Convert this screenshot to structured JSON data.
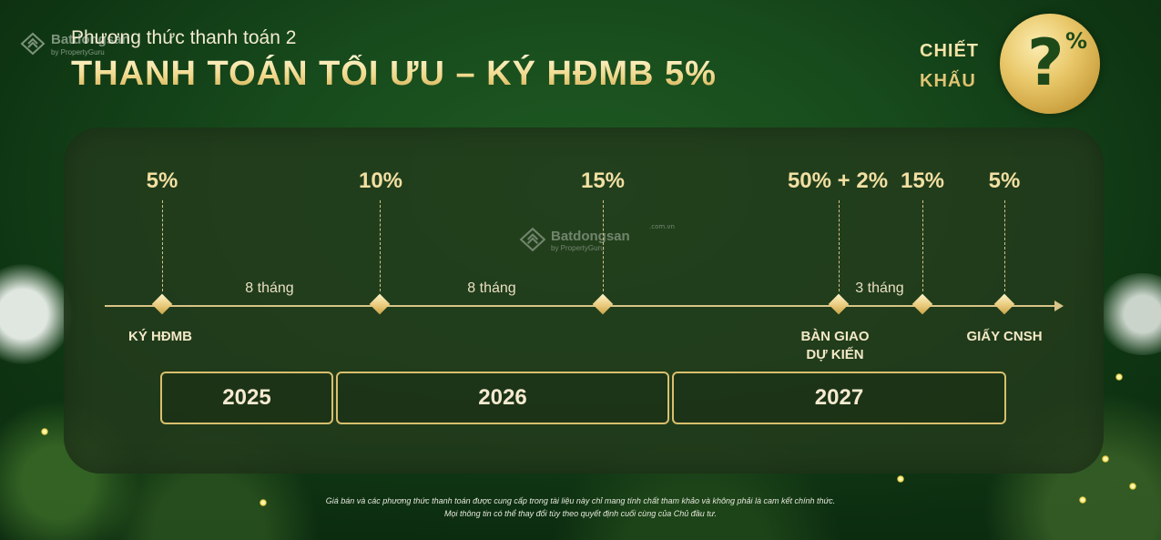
{
  "header": {
    "watermark_brand": "Batdongsan",
    "watermark_sub": "by PropertyGuru",
    "subtitle": "Phương thức thanh toán 2",
    "title": "THANH TOÁN TỐI ƯU – KÝ HĐMB 5%"
  },
  "discount": {
    "label_line1": "CHIẾT",
    "label_line2": "KHẤU",
    "badge_symbol": "?",
    "badge_percent": "%",
    "badge_color": "#e9c86a"
  },
  "center_watermark": {
    "brand": "Batdongsan",
    "sub": "by PropertyGuru",
    "domain": ".com.vn"
  },
  "timeline": {
    "percentages": [
      "5%",
      "10%",
      "15%",
      "50% + 2%",
      "15%",
      "5%"
    ],
    "durations": [
      "8 tháng",
      "8 tháng",
      "3 tháng"
    ],
    "milestones": {
      "sign": "KÝ HĐMB",
      "handover_line1": "BÀN GIAO",
      "handover_line2": "DỰ KIẾN",
      "certificate": "GIẤY CNSH"
    },
    "years": [
      "2025",
      "2026",
      "2027"
    ],
    "accent_color": "#d9bf6d"
  },
  "disclaimer": {
    "line1": "Giá bán và các phương thức thanh toán được cung cấp trong tài liệu này chỉ mang tính chất tham khảo và không phải là cam kết chính thức.",
    "line2": "Mọi thông tin có thể thay đổi tùy theo quyết định cuối cùng của Chủ đầu tư."
  }
}
